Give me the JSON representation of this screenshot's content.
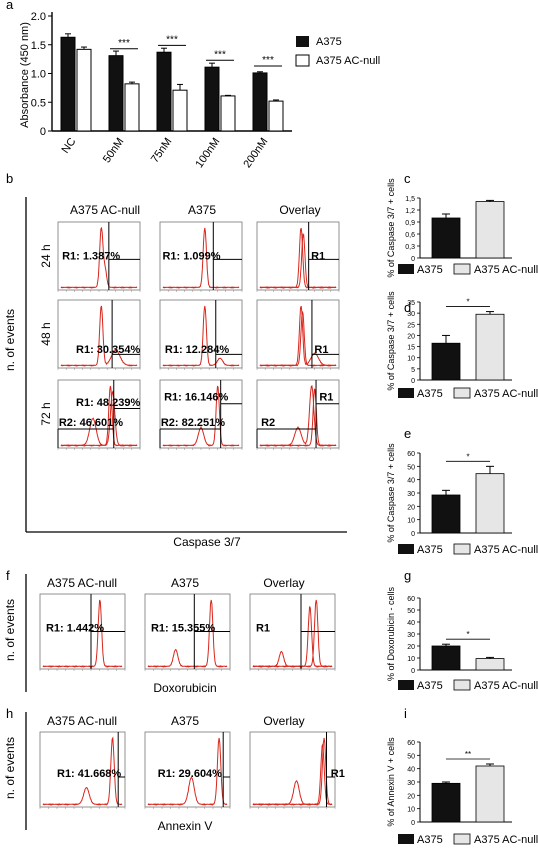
{
  "colors": {
    "hist": "#d9261c",
    "dark": "#111111",
    "light": "#e6e6e6"
  },
  "panel_a": {
    "letter": "a",
    "ylabel": "Absorbance (450 nm)",
    "yticks": [
      "0",
      "0.5",
      "1.0",
      "1.5",
      "2.0"
    ],
    "legend": [
      "A375",
      "A375 AC-null"
    ]
  },
  "panel_b": {
    "letter": "b",
    "columns": [
      "A375 AC-null",
      "A375",
      "Overlay"
    ],
    "rows": [
      "24 h",
      "48 h",
      "72 h"
    ],
    "ylabel": "n. of events",
    "xlabel": "Caspase 3/7",
    "labels": {
      "r24_acnull": "R1: 1.387%",
      "r24_a375": "R1: 1.099%",
      "r24_ov": "R1",
      "r48_acnull": "R1: 30.354%",
      "r48_a375": "R1: 12.284%",
      "r48_ov": "R1",
      "r72_acnull_r1": "R1: 48.239%",
      "r72_acnull_r2": "R2: 46.601%",
      "r72_a375_r1": "R1: 16.146%",
      "r72_a375_r2": "R2: 82.251%",
      "r72_ov_r1": "R1",
      "r72_ov_r2": "R2"
    }
  },
  "panel_f": {
    "letter": "f",
    "columns": [
      "A375 AC-null",
      "A375",
      "Overlay"
    ],
    "ylabel": "n. of events",
    "xlabel": "Doxorubicin",
    "labels": {
      "acnull": "R1: 1.442%",
      "a375": "R1: 15.355%",
      "ov": "R1"
    }
  },
  "panel_h": {
    "letter": "h",
    "columns": [
      "A375 AC-null",
      "A375",
      "Overlay"
    ],
    "ylabel": "n. of events",
    "xlabel": "Annexin V",
    "labels": {
      "acnull": "R1: 41.668%",
      "a375": "R1: 29.604%",
      "ov": "R1"
    }
  },
  "small_letters": {
    "c": "c",
    "d": "d",
    "e": "e",
    "g": "g",
    "i": "i"
  },
  "small_legend": [
    "A375",
    "A375 AC-null"
  ],
  "chart_data": [
    {
      "id": "a",
      "type": "bar",
      "categories": [
        "NC",
        "50nM",
        "75nM",
        "100nM",
        "200nM"
      ],
      "series": [
        {
          "name": "A375",
          "values": [
            1.63,
            1.31,
            1.37,
            1.11,
            1.01
          ],
          "errors": [
            0.06,
            0.08,
            0.07,
            0.07,
            0.02
          ]
        },
        {
          "name": "A375 AC-null",
          "values": [
            1.42,
            0.82,
            0.71,
            0.61,
            0.52
          ],
          "errors": [
            0.04,
            0.03,
            0.1,
            0.01,
            0.02
          ]
        }
      ],
      "ylabel": "Absorbance (450 nm)",
      "ylim": [
        0,
        2.0
      ],
      "significance": [
        "",
        "***",
        "***",
        "***",
        "***"
      ]
    },
    {
      "id": "c",
      "type": "bar",
      "categories": [
        "A375",
        "A375 AC-null"
      ],
      "values": [
        1.0,
        1.41
      ],
      "errors": [
        0.1,
        0.03
      ],
      "ylabel": "% of Caspase 3/7 + cells",
      "ylim": [
        0,
        1.5
      ],
      "yticks": [
        "0",
        "0,3",
        "0,6",
        "0,9",
        "1,2",
        "1,5"
      ],
      "significance": ""
    },
    {
      "id": "d",
      "type": "bar",
      "categories": [
        "A375",
        "A375 AC-null"
      ],
      "values": [
        16.5,
        29.5
      ],
      "errors": [
        3.5,
        1.2
      ],
      "ylabel": "% of Caspase 3/7 + cells",
      "ylim": [
        0,
        35
      ],
      "yticks": [
        "0",
        "5",
        "10",
        "15",
        "20",
        "25",
        "30",
        "35"
      ],
      "significance": "*"
    },
    {
      "id": "e",
      "type": "bar",
      "categories": [
        "A375",
        "A375 AC-null"
      ],
      "values": [
        28.5,
        44.5
      ],
      "errors": [
        3.5,
        5.5
      ],
      "ylabel": "% of Caspase 3/7 + cells",
      "ylim": [
        0,
        60
      ],
      "yticks": [
        "0",
        "10",
        "20",
        "30",
        "40",
        "50",
        "60"
      ],
      "significance": "*"
    },
    {
      "id": "g",
      "type": "bar",
      "categories": [
        "A375",
        "A375 AC-null"
      ],
      "values": [
        20,
        9.5
      ],
      "errors": [
        1.5,
        1
      ],
      "ylabel": "% of Doxorubicin - cells",
      "ylim": [
        0,
        60
      ],
      "yticks": [
        "0",
        "10",
        "20",
        "30",
        "40",
        "50",
        "60"
      ],
      "significance": "*"
    },
    {
      "id": "i",
      "type": "bar",
      "categories": [
        "A375",
        "A375 AC-null"
      ],
      "values": [
        29,
        42
      ],
      "errors": [
        1,
        1.5
      ],
      "ylabel": "% of Annexin V + cells",
      "ylim": [
        0,
        60
      ],
      "yticks": [
        "0",
        "10",
        "20",
        "30",
        "40",
        "50",
        "60"
      ],
      "significance": "**"
    }
  ]
}
